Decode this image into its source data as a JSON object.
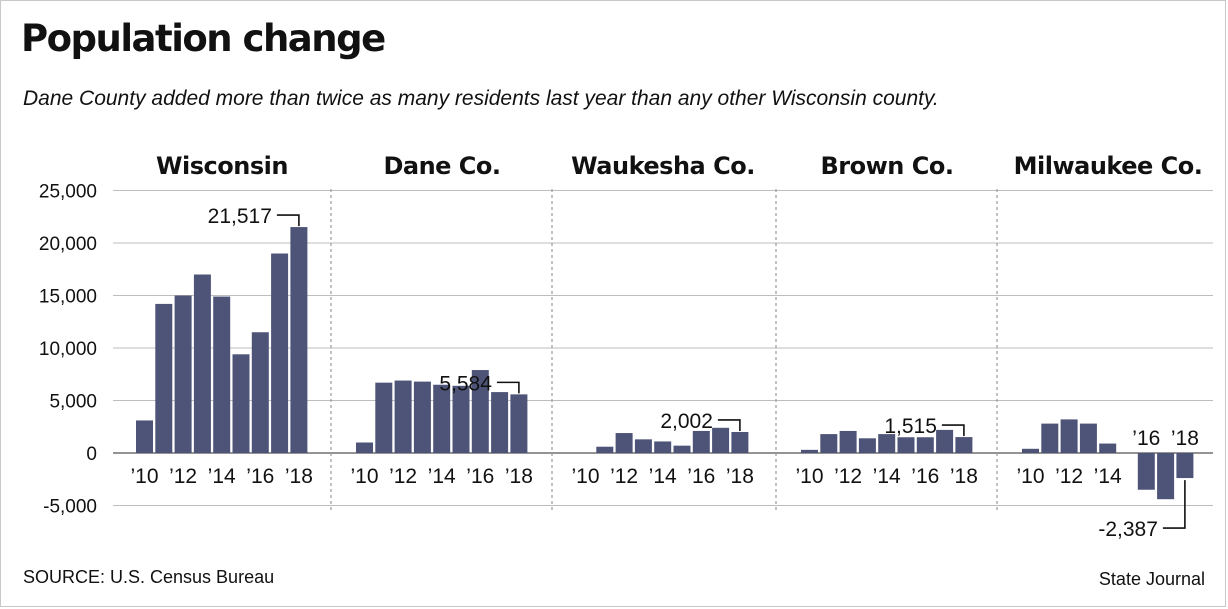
{
  "title": "Population change",
  "subtitle": "Dane County added more than twice as many residents last year than any other Wisconsin county.",
  "source": "SOURCE: U.S. Census Bureau",
  "credit": "State Journal",
  "colors": {
    "bar": "#4e5478",
    "text": "#111111",
    "grid": "#bdbdbd",
    "divider": "#9a9a9a"
  },
  "chart_data": {
    "type": "bar",
    "title": "Population change",
    "ylim": [
      -5000,
      25000
    ],
    "yticks": [
      -5000,
      0,
      5000,
      10000,
      15000,
      20000,
      25000
    ],
    "ytick_labels": [
      "-5,000",
      "0",
      "5,000",
      "10,000",
      "15,000",
      "20,000",
      "25,000"
    ],
    "grid": true,
    "categories": [
      "2010",
      "2011",
      "2012",
      "2013",
      "2014",
      "2015",
      "2016",
      "2017",
      "2018"
    ],
    "panels": [
      {
        "name": "Wisconsin",
        "values": [
          3100,
          14200,
          15000,
          17000,
          14900,
          9400,
          11500,
          19000,
          21517
        ],
        "xtick_labels": [
          "’10",
          "’12",
          "’14",
          "’16",
          "’18"
        ],
        "callout": "21,517"
      },
      {
        "name": "Dane Co.",
        "values": [
          1000,
          6700,
          6900,
          6800,
          6500,
          6400,
          7900,
          5800,
          5584
        ],
        "xtick_labels": [
          "’10",
          "’12",
          "’14",
          "’16",
          "’18"
        ],
        "callout": "5,584"
      },
      {
        "name": "Waukesha Co.",
        "values": [
          0,
          600,
          1900,
          1300,
          1100,
          700,
          2100,
          2400,
          2002
        ],
        "xtick_labels": [
          "’10",
          "’12",
          "’14",
          "’16",
          "’18"
        ],
        "callout": "2,002"
      },
      {
        "name": "Brown Co.",
        "values": [
          300,
          1800,
          2100,
          1400,
          1800,
          1500,
          1500,
          2200,
          1515
        ],
        "xtick_labels": [
          "’10",
          "’12",
          "’14",
          "’16",
          "’18"
        ],
        "callout": "1,515"
      },
      {
        "name": "Milwaukee Co.",
        "values": [
          400,
          2800,
          3200,
          2800,
          900,
          0,
          -3500,
          -4400,
          -2387
        ],
        "xtick_labels": [
          "’10",
          "’12",
          "’14",
          "’16",
          "’18"
        ],
        "callout": "-2,387"
      }
    ]
  }
}
